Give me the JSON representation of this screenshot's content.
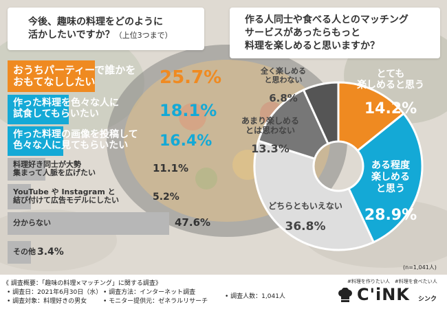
{
  "left_question": {
    "line1": "今後、趣味の料理をどのように",
    "line2": "活かしたいですか？",
    "line2_note": "（上位3つまで）"
  },
  "right_question": {
    "line1": "作る人同士や食べる人とのマッチング",
    "line2": "サービスがあったらもっと",
    "line3": "料理を楽しめると思いますか？"
  },
  "sample_note": "(n=1,041人)",
  "colors": {
    "orange": "#ef8a21",
    "blue": "#14a9d6",
    "dark_gray": "#555555",
    "mid_gray": "#777777",
    "light_gray": "#b7b7b7",
    "pale_gray": "#dedede"
  },
  "chart_data": [
    {
      "type": "bar",
      "orientation": "horizontal",
      "categories": [
        [
          "おうちパーティーで誰かを",
          "おもてなししたい"
        ],
        [
          "作った料理を色々な人に",
          "試食してもらいたい"
        ],
        [
          "作った料理の画像を投稿して",
          "色々な人に見てもらいたい"
        ],
        [
          "料理好き同士が大勢",
          "集まって人脈を広げたい"
        ],
        [
          "YouTube や Instagram と",
          "結び付けて広告モデルにしたい"
        ],
        [
          "分からない"
        ],
        [
          "その他"
        ]
      ],
      "values": [
        25.7,
        18.1,
        16.4,
        11.1,
        5.2,
        47.6,
        3.4
      ],
      "value_labels": [
        "25.7%",
        "18.1%",
        "16.4%",
        "11.1%",
        "5.2%",
        "47.6%",
        "3.4%"
      ]
    },
    {
      "type": "pie",
      "style": "donut",
      "slices": [
        {
          "label_lines": [
            "とても",
            "楽しめると思う"
          ],
          "value": 14.2,
          "value_label": "14.2%"
        },
        {
          "label_lines": [
            "ある程度",
            "楽しめる",
            "と思う"
          ],
          "value": 28.9,
          "value_label": "28.9%"
        },
        {
          "label_lines": [
            "どちらともいえない"
          ],
          "value": 36.8,
          "value_label": "36.8%"
        },
        {
          "label_lines": [
            "あまり楽しめる",
            "とは思わない"
          ],
          "value": 13.3,
          "value_label": "13.3%"
        },
        {
          "label_lines": [
            "全く楽しめる",
            "と思わない"
          ],
          "value": 6.8,
          "value_label": "6.8%"
        }
      ]
    }
  ],
  "footer": {
    "survey_title": "《 調査概要：「趣味の料理×マッチング」に関する調査》",
    "date": "• 調査日：2021年6月30日（水）",
    "method": "• 調査方法：インターネット調査",
    "count": "• 調査人数：1,041人",
    "target": "• 調査対象：料理好きの男女",
    "provider": "• モニター提供元：ゼネラルリサーチ"
  },
  "logo": {
    "tagline": "#料理を作りたい人　#料理を食べたい人",
    "wordmark": "C'iNK",
    "kana": "シンク"
  }
}
